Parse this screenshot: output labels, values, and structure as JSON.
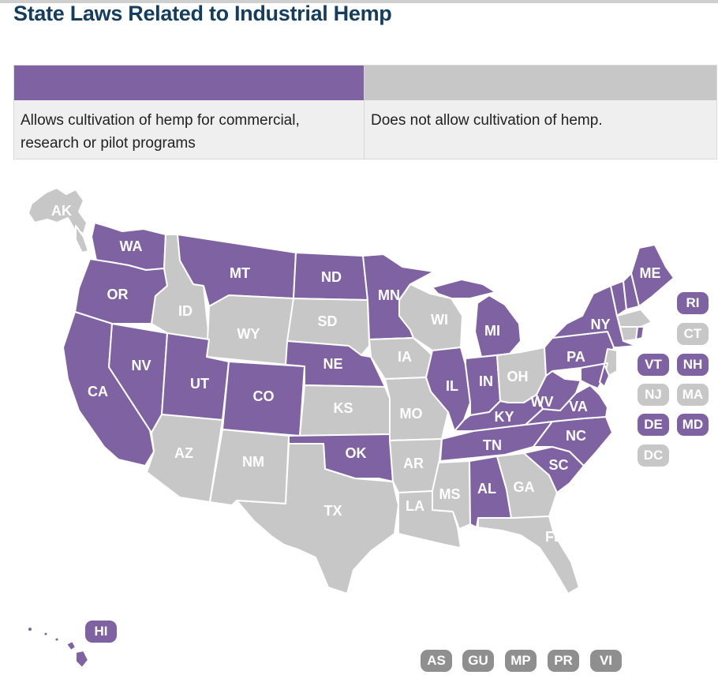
{
  "title": "State Laws Related to Industrial Hemp",
  "colors": {
    "allows": "#7e62a2",
    "not_allowed": "#c6c7c6"
  },
  "legend": [
    {
      "color": "#7e62a2",
      "label": "Allows cultivation of hemp for commercial, research or pilot programs"
    },
    {
      "color": "#c6c7c6",
      "label": "Does not allow cultivation of hemp."
    }
  ],
  "states": [
    {
      "code": "AK",
      "status": "not_allowed"
    },
    {
      "code": "WA",
      "status": "allows"
    },
    {
      "code": "OR",
      "status": "allows"
    },
    {
      "code": "CA",
      "status": "allows"
    },
    {
      "code": "NV",
      "status": "allows"
    },
    {
      "code": "ID",
      "status": "not_allowed"
    },
    {
      "code": "MT",
      "status": "allows"
    },
    {
      "code": "WY",
      "status": "not_allowed"
    },
    {
      "code": "UT",
      "status": "allows"
    },
    {
      "code": "AZ",
      "status": "not_allowed"
    },
    {
      "code": "CO",
      "status": "allows"
    },
    {
      "code": "NM",
      "status": "not_allowed"
    },
    {
      "code": "ND",
      "status": "allows"
    },
    {
      "code": "SD",
      "status": "not_allowed"
    },
    {
      "code": "NE",
      "status": "allows"
    },
    {
      "code": "KS",
      "status": "not_allowed"
    },
    {
      "code": "OK",
      "status": "allows"
    },
    {
      "code": "TX",
      "status": "not_allowed"
    },
    {
      "code": "MN",
      "status": "allows"
    },
    {
      "code": "IA",
      "status": "not_allowed"
    },
    {
      "code": "MO",
      "status": "not_allowed"
    },
    {
      "code": "AR",
      "status": "not_allowed"
    },
    {
      "code": "LA",
      "status": "not_allowed"
    },
    {
      "code": "WI",
      "status": "not_allowed"
    },
    {
      "code": "IL",
      "status": "allows"
    },
    {
      "code": "MI",
      "status": "allows"
    },
    {
      "code": "IN",
      "status": "allows"
    },
    {
      "code": "OH",
      "status": "not_allowed"
    },
    {
      "code": "KY",
      "status": "allows"
    },
    {
      "code": "TN",
      "status": "allows"
    },
    {
      "code": "MS",
      "status": "not_allowed"
    },
    {
      "code": "AL",
      "status": "allows"
    },
    {
      "code": "GA",
      "status": "not_allowed"
    },
    {
      "code": "FL",
      "status": "not_allowed"
    },
    {
      "code": "SC",
      "status": "allows"
    },
    {
      "code": "NC",
      "status": "allows"
    },
    {
      "code": "VA",
      "status": "allows"
    },
    {
      "code": "WV",
      "status": "allows"
    },
    {
      "code": "PA",
      "status": "allows"
    },
    {
      "code": "NY",
      "status": "allows"
    },
    {
      "code": "ME",
      "status": "allows"
    },
    {
      "code": "HI",
      "status": "allows"
    }
  ],
  "small_states": [
    {
      "code": "RI",
      "status": "allows"
    },
    {
      "code": "CT",
      "status": "not_allowed"
    },
    {
      "code": "VT",
      "status": "allows"
    },
    {
      "code": "NH",
      "status": "allows"
    },
    {
      "code": "NJ",
      "status": "not_allowed"
    },
    {
      "code": "MA",
      "status": "not_allowed"
    },
    {
      "code": "DE",
      "status": "allows"
    },
    {
      "code": "MD",
      "status": "allows"
    },
    {
      "code": "DC",
      "status": "not_allowed"
    }
  ],
  "territories": [
    {
      "code": "AS",
      "status": "territory"
    },
    {
      "code": "GU",
      "status": "territory"
    },
    {
      "code": "MP",
      "status": "territory"
    },
    {
      "code": "PR",
      "status": "territory"
    },
    {
      "code": "VI",
      "status": "territory"
    }
  ],
  "territory_color": "#8f8f8f"
}
